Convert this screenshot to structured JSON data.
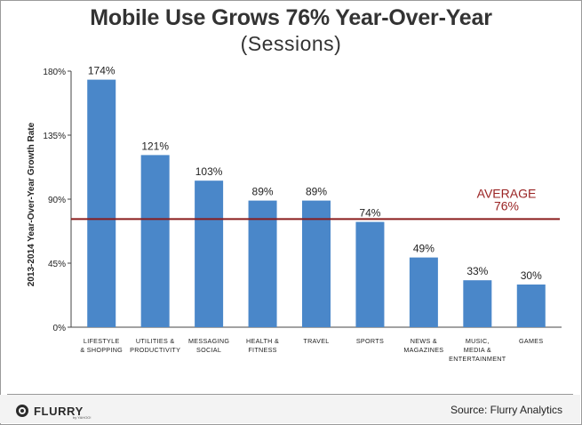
{
  "title": "Mobile Use Grows 76% Year-Over-Year",
  "subtitle": "(Sessions)",
  "logo": {
    "text": "FLURRY",
    "sub": "by YAHOO!",
    "icon": "flurry-logo-icon"
  },
  "source": "Source: Flurry Analytics",
  "colors": {
    "bar": "#4a87c9",
    "average_line": "#8a1c1c",
    "average_text": "#9a2323",
    "text": "#222222"
  },
  "chart_data": {
    "type": "bar",
    "ylabel": "2013-2014 Year-Over-Year Growth Rate",
    "ylim": [
      0,
      180
    ],
    "yticks": [
      0,
      45,
      90,
      135,
      180
    ],
    "ytick_labels": [
      "0%",
      "45%",
      "90%",
      "135%",
      "180%"
    ],
    "categories": [
      [
        "LIFESTYLE",
        "& SHOPPING"
      ],
      [
        "UTILITIES &",
        "PRODUCTIVITY"
      ],
      [
        "MESSAGING",
        "SOCIAL"
      ],
      [
        "HEALTH &",
        "FITNESS"
      ],
      [
        "TRAVEL"
      ],
      [
        "SPORTS"
      ],
      [
        "NEWS &",
        "MAGAZINES"
      ],
      [
        "MUSIC,",
        "MEDIA &",
        "ENTERTAINMENT"
      ],
      [
        "GAMES"
      ]
    ],
    "values": [
      174,
      121,
      103,
      89,
      89,
      74,
      49,
      33,
      30
    ],
    "value_labels": [
      "174%",
      "121%",
      "103%",
      "89%",
      "89%",
      "74%",
      "49%",
      "33%",
      "30%"
    ],
    "average": {
      "value": 76,
      "label_lines": [
        "AVERAGE",
        "76%"
      ]
    },
    "grid": false,
    "legend": "none"
  }
}
